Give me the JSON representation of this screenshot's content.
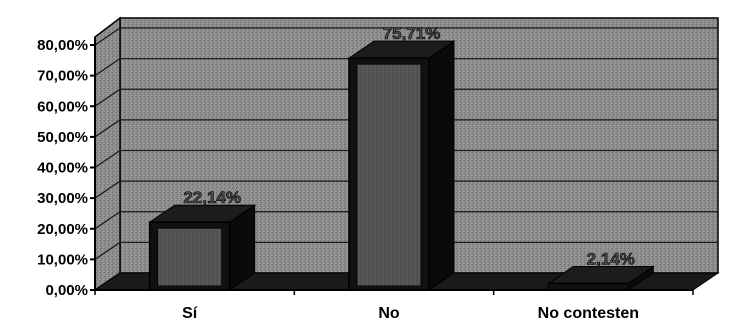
{
  "chart_data": {
    "type": "bar",
    "title": "",
    "xlabel": "",
    "ylabel": "",
    "categories": [
      "Sí",
      "No",
      "No contesten"
    ],
    "values": [
      22.14,
      75.71,
      2.14
    ],
    "data_labels": [
      "22,14%",
      "75,71%",
      "2,14%"
    ],
    "ylim": [
      0,
      80
    ],
    "y_ticks": [
      0,
      10,
      20,
      30,
      40,
      50,
      60,
      70,
      80
    ],
    "y_tick_labels": [
      "0,00%",
      "10,00%",
      "20,00%",
      "30,00%",
      "40,00%",
      "50,00%",
      "60,00%",
      "70,00%",
      "80,00%"
    ],
    "grid": true,
    "legend": "none",
    "style": "3d-column",
    "colors": {
      "background": "#8a8a8a",
      "bar_front": "#111111",
      "bar_face": "#333333",
      "bar_inner": "#6a6a6a",
      "floor": "#1a1a1a"
    }
  }
}
